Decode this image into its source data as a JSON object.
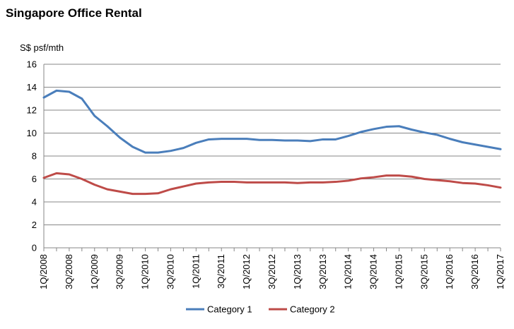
{
  "chart_data": {
    "type": "line",
    "title": "Singapore  Office Rental",
    "ylabel": "S$ psf/mth",
    "xlabel": "",
    "ylim": [
      0,
      16
    ],
    "yticks": [
      0,
      2,
      4,
      6,
      8,
      10,
      12,
      14,
      16
    ],
    "grid": true,
    "legend": "bottom",
    "categories": [
      "1Q/2008",
      "2Q/2008",
      "3Q/2008",
      "4Q/2008",
      "1Q/2009",
      "2Q/2009",
      "3Q/2009",
      "4Q/2009",
      "1Q/2010",
      "2Q/2010",
      "3Q/2010",
      "4Q/2010",
      "1Q/2011",
      "2Q/2011",
      "3Q/2011",
      "4Q/2011",
      "1Q/2012",
      "2Q/2012",
      "3Q/2012",
      "4Q/2012",
      "1Q/2013",
      "2Q/2013",
      "3Q/2013",
      "4Q/2013",
      "1Q/2014",
      "2Q/2014",
      "3Q/2014",
      "4Q/2014",
      "1Q/2015",
      "2Q/2015",
      "3Q/2015",
      "4Q/2015",
      "1Q/2016",
      "2Q/2016",
      "3Q/2016",
      "4Q/2016",
      "1Q/2017"
    ],
    "xticklabels": [
      "1Q/2008",
      "3Q/2008",
      "1Q/2009",
      "3Q/2009",
      "1Q/2010",
      "3Q/2010",
      "1Q/2011",
      "3Q/2011",
      "1Q/2012",
      "3Q/2012",
      "1Q/2013",
      "3Q/2013",
      "1Q/2014",
      "3Q/2014",
      "1Q/2015",
      "3Q/2015",
      "1Q/2016",
      "3Q/2016",
      "1Q/2017"
    ],
    "series": [
      {
        "name": "Category 1",
        "color": "#4a7ebb",
        "values": [
          13.1,
          13.7,
          13.6,
          13.0,
          11.5,
          10.6,
          9.6,
          8.8,
          8.3,
          8.3,
          8.45,
          8.7,
          9.15,
          9.45,
          9.5,
          9.5,
          9.5,
          9.4,
          9.4,
          9.35,
          9.35,
          9.3,
          9.45,
          9.45,
          9.75,
          10.1,
          10.35,
          10.55,
          10.6,
          10.3,
          10.05,
          9.85,
          9.5,
          9.2,
          9.0,
          8.8,
          8.6
        ]
      },
      {
        "name": "Category 2",
        "color": "#be4b48",
        "values": [
          6.1,
          6.5,
          6.4,
          6.0,
          5.5,
          5.1,
          4.9,
          4.7,
          4.7,
          4.75,
          5.1,
          5.35,
          5.6,
          5.7,
          5.75,
          5.75,
          5.7,
          5.7,
          5.7,
          5.7,
          5.65,
          5.7,
          5.7,
          5.75,
          5.85,
          6.05,
          6.15,
          6.3,
          6.3,
          6.2,
          6.0,
          5.9,
          5.8,
          5.65,
          5.6,
          5.45,
          5.25
        ]
      }
    ]
  }
}
